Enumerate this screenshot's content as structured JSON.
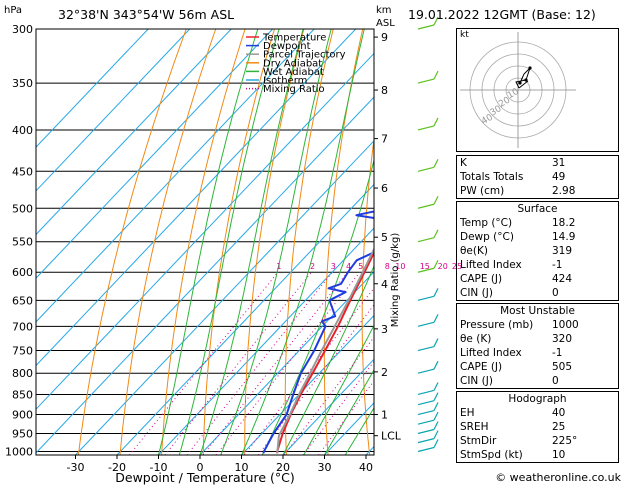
{
  "header": {
    "pressure_unit": "hPa",
    "location": "32°38'N  343°54'W  56m  ASL",
    "height_unit_line1": "km",
    "height_unit_line2": "ASL",
    "datetime": "19.01.2022  12GMT  (Base: 12)"
  },
  "footer": {
    "credit": "© weatheronline.co.uk"
  },
  "legend": [
    {
      "label": "Temperature",
      "color": "#e8222a",
      "dotted": false
    },
    {
      "label": "Dewpoint",
      "color": "#1f3ce0",
      "dotted": false
    },
    {
      "label": "Parcel Trajectory",
      "color": "#999999",
      "dotted": false
    },
    {
      "label": "Dry Adiabat",
      "color": "#f08a14",
      "dotted": false
    },
    {
      "label": "Wet Adiabat",
      "color": "#2db53a",
      "dotted": false
    },
    {
      "label": "Isotherm",
      "color": "#26a8e6",
      "dotted": false
    },
    {
      "label": "Mixing Ratio",
      "color": "#d4008f",
      "dotted": true
    }
  ],
  "hodograph": {
    "label": "kt",
    "ring_labels": [
      "10",
      "20",
      "30",
      "40"
    ]
  },
  "indices": {
    "top": [
      {
        "label": "K",
        "value": "31"
      },
      {
        "label": "Totals Totals",
        "value": "49"
      },
      {
        "label": "PW (cm)",
        "value": "2.98"
      }
    ],
    "surface_title": "Surface",
    "surface": [
      {
        "label": "Temp (°C)",
        "value": "18.2"
      },
      {
        "label": "Dewp (°C)",
        "value": "14.9"
      },
      {
        "label": "θe(K)",
        "value": "319"
      },
      {
        "label": "Lifted Index",
        "value": "-1"
      },
      {
        "label": "CAPE (J)",
        "value": "424"
      },
      {
        "label": "CIN (J)",
        "value": "0"
      }
    ],
    "unstable_title": "Most Unstable",
    "unstable": [
      {
        "label": "Pressure (mb)",
        "value": "1000"
      },
      {
        "label": "θe (K)",
        "value": "320"
      },
      {
        "label": "Lifted Index",
        "value": "-1"
      },
      {
        "label": "CAPE (J)",
        "value": "505"
      },
      {
        "label": "CIN (J)",
        "value": "0"
      }
    ],
    "hodo_title": "Hodograph",
    "hodo": [
      {
        "label": "EH",
        "value": "40"
      },
      {
        "label": "SREH",
        "value": "25"
      },
      {
        "label": "StmDir",
        "value": "225°"
      },
      {
        "label": "StmSpd (kt)",
        "value": "10"
      }
    ]
  },
  "chart_data": {
    "type": "line",
    "title": "",
    "xlabel": "Dewpoint / Temperature (°C)",
    "ylabel": "hPa",
    "right_ylabel": "Mixing Ratio (g/kg)",
    "xlim": [
      -35,
      40
    ],
    "x_ticks": [
      -30,
      -20,
      -10,
      0,
      10,
      20,
      30,
      40
    ],
    "pressure_levels": [
      300,
      350,
      400,
      450,
      500,
      550,
      600,
      650,
      700,
      750,
      800,
      850,
      900,
      950,
      1000
    ],
    "height_km_ticks": [
      {
        "label": "9",
        "p": 307
      },
      {
        "label": "8",
        "p": 357
      },
      {
        "label": "7",
        "p": 410
      },
      {
        "label": "6",
        "p": 472
      },
      {
        "label": "5",
        "p": 543
      },
      {
        "label": "4",
        "p": 620
      },
      {
        "label": "3",
        "p": 705
      },
      {
        "label": "2",
        "p": 797
      },
      {
        "label": "1",
        "p": 900
      },
      {
        "label": "LCL",
        "p": 956
      }
    ],
    "mixing_ratio_labels": [
      "1",
      "2",
      "3",
      "4",
      "5",
      "8",
      "10",
      "15",
      "20",
      "25"
    ],
    "mixing_ratio_label_p": 598,
    "series": [
      {
        "name": "Temperature",
        "color": "#e8222a",
        "points": [
          [
            1005,
            18.2
          ],
          [
            1000,
            17.8
          ],
          [
            950,
            15
          ],
          [
            900,
            12.6
          ],
          [
            850,
            10.4
          ],
          [
            800,
            8.4
          ],
          [
            750,
            6.2
          ],
          [
            700,
            3.8
          ],
          [
            650,
            0.8
          ],
          [
            600,
            -2.2
          ],
          [
            550,
            -5.6
          ],
          [
            500,
            -9.6
          ],
          [
            450,
            -14.2
          ],
          [
            400,
            -19.8
          ],
          [
            350,
            -26.8
          ],
          [
            300,
            -34.2
          ]
        ]
      },
      {
        "name": "Dewpoint",
        "color": "#1f3ce0",
        "points": [
          [
            1005,
            14.9
          ],
          [
            1000,
            14.6
          ],
          [
            950,
            12.8
          ],
          [
            900,
            11.6
          ],
          [
            850,
            8.6
          ],
          [
            800,
            5.6
          ],
          [
            750,
            3.6
          ],
          [
            700,
            0.8
          ],
          [
            690,
            -1.2
          ],
          [
            680,
            0.8
          ],
          [
            650,
            -4.2
          ],
          [
            635,
            -2.2
          ],
          [
            628,
            -7.2
          ],
          [
            620,
            -5.2
          ],
          [
            600,
            -6.2
          ],
          [
            580,
            -6.8
          ],
          [
            560,
            -3.2
          ],
          [
            540,
            -2.2
          ],
          [
            520,
            -5.2
          ],
          [
            510,
            -17.2
          ],
          [
            505,
            -14.2
          ],
          [
            500,
            -6.2
          ],
          [
            450,
            -10.2
          ],
          [
            420,
            -16.2
          ],
          [
            400,
            -22.2
          ],
          [
            380,
            -32.2
          ],
          [
            350,
            -42.2
          ],
          [
            320,
            -46.2
          ],
          [
            310,
            -44.2
          ],
          [
            300,
            -46.2
          ]
        ]
      },
      {
        "name": "Parcel Trajectory",
        "color": "#999999",
        "points": [
          [
            1005,
            18.2
          ],
          [
            956,
            14.6
          ],
          [
            900,
            12.4
          ],
          [
            850,
            10.0
          ],
          [
            800,
            7.8
          ],
          [
            750,
            5.4
          ],
          [
            700,
            3.0
          ],
          [
            650,
            0.4
          ],
          [
            600,
            -2.6
          ],
          [
            550,
            -6.0
          ],
          [
            500,
            -10.0
          ],
          [
            450,
            -14.6
          ],
          [
            400,
            -20.0
          ],
          [
            350,
            -26.6
          ],
          [
            300,
            -34.0
          ]
        ]
      }
    ],
    "grid": true
  }
}
